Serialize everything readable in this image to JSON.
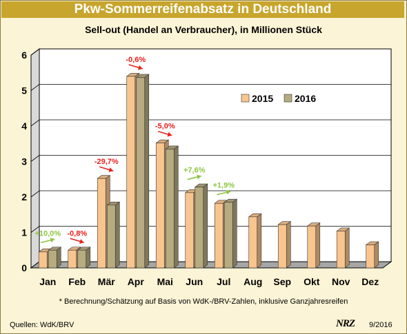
{
  "header": {
    "title": "Pkw-Sommerreifenabsatz in Deutschland",
    "subtitle": "Sell-out (Handel an Verbraucher), in Millionen Stück"
  },
  "footer": {
    "footnote": "* Berechnung/Schätzung auf Basis von WdK-/BRV-Zahlen, inklusive Ganzjahresreifen",
    "source": "Quellen: WdK/BRV",
    "logo": "NRZ",
    "issue": "9/2016"
  },
  "colors": {
    "series_2015": "#f9c58e",
    "series_2016": "#b7ab80",
    "positive": "#8cc63f",
    "negative": "#e8201a",
    "title_bar": "#c8a52c",
    "plot_bg": "#ffffff"
  },
  "chart_data": {
    "type": "bar",
    "categories": [
      "Jan",
      "Feb",
      "Mär",
      "Apr",
      "Mai",
      "Jun",
      "Jul",
      "Aug",
      "Sep",
      "Okt",
      "Nov",
      "Dez"
    ],
    "series": [
      {
        "name": "2015",
        "values": [
          0.45,
          0.5,
          2.52,
          5.4,
          3.52,
          2.12,
          1.82,
          1.44,
          1.22,
          1.18,
          1.04,
          0.65
        ]
      },
      {
        "name": "2016",
        "values": [
          0.5,
          0.5,
          1.77,
          5.37,
          3.35,
          2.28,
          1.85,
          null,
          null,
          null,
          null,
          null
        ]
      }
    ],
    "ylim": [
      0,
      6
    ],
    "yticks": [
      0,
      1,
      2,
      3,
      4,
      5,
      6
    ],
    "grid": true,
    "legend": "top-right",
    "annotations": [
      {
        "category": "Jan",
        "text": "+10,0%",
        "direction": "up"
      },
      {
        "category": "Feb",
        "text": "-0,8%",
        "direction": "down"
      },
      {
        "category": "Mär",
        "text": "-29,7%",
        "direction": "down"
      },
      {
        "category": "Apr",
        "text": "-0,6%",
        "direction": "down"
      },
      {
        "category": "Mai",
        "text": "-5,0%",
        "direction": "down"
      },
      {
        "category": "Jun",
        "text": "+7,6%",
        "direction": "up"
      },
      {
        "category": "Jul",
        "text": "+1,9%",
        "direction": "up"
      }
    ]
  }
}
